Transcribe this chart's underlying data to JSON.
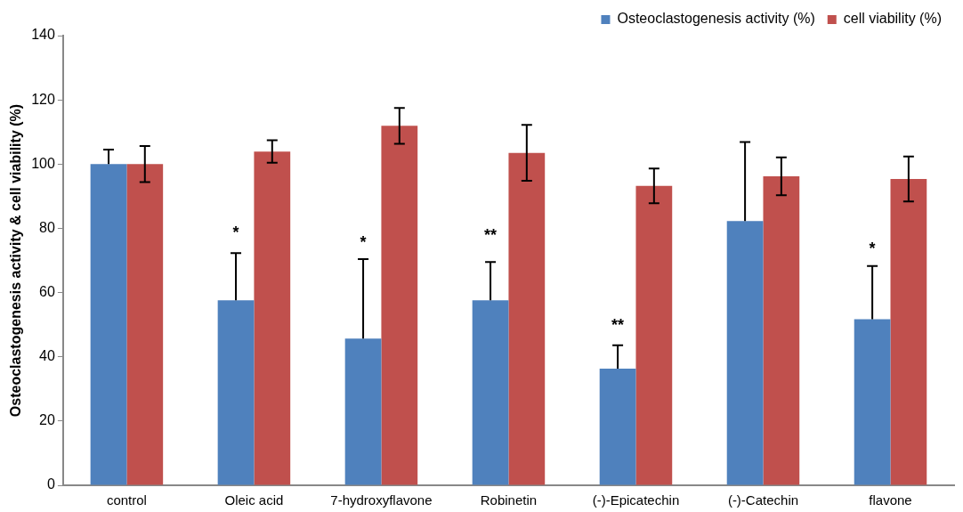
{
  "chart_data": {
    "type": "bar",
    "ylabel": "Osteoclastogenesis activity & cell viability (%)",
    "categories": [
      "control",
      "Oleic acid",
      "7-hydroxyflavone",
      "Robinetin",
      "(-)-Epicatechin",
      "(-)-Catechin",
      "flavone"
    ],
    "series": [
      {
        "name": "Osteoclastogenesis activity (%)",
        "color": "#4f81bd",
        "values": [
          100,
          57.6,
          45.7,
          57.6,
          36.3,
          82.3,
          51.7
        ],
        "errors": [
          [
            100,
            104.5
          ],
          [
            57.6,
            72.3
          ],
          [
            45.7,
            70.4
          ],
          [
            57.6,
            69.5
          ],
          [
            36.3,
            43.6
          ],
          [
            82.3,
            106.9
          ],
          [
            51.7,
            68.3
          ]
        ]
      },
      {
        "name": "cell viability (%)",
        "color": "#c0504d",
        "values": [
          100,
          103.9,
          111.9,
          103.5,
          93.2,
          96.2,
          95.4
        ],
        "errors": [
          5.6,
          3.5,
          5.6,
          8.7,
          5.4,
          5.9,
          7
        ]
      }
    ],
    "ylim": [
      0,
      140
    ],
    "yticks": [
      0,
      20,
      40,
      60,
      80,
      100,
      120,
      140
    ],
    "grid": false,
    "legend": "top right",
    "annotations": [
      {
        "text": "*",
        "x": "Oleic acid",
        "y": 78.5
      },
      {
        "text": "*",
        "x": "7-hydroxyflavone",
        "y": 75.5
      },
      {
        "text": "**",
        "x": "Robinetin",
        "y": 77.5
      },
      {
        "text": "**",
        "x": "(-)-Epicatechin",
        "y": 49.5
      },
      {
        "text": "*",
        "x": "flavone",
        "y": 73.5
      }
    ]
  }
}
